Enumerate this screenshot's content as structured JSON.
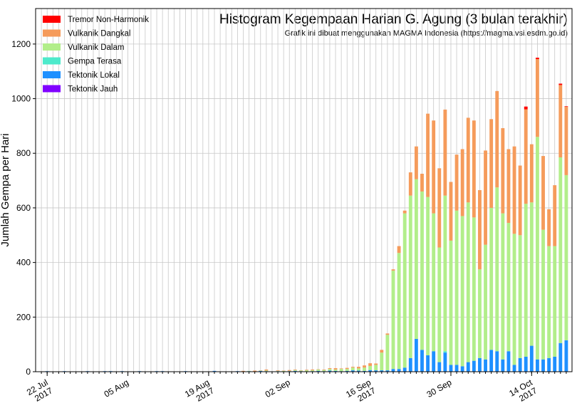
{
  "chart_data": {
    "type": "stacked_bar",
    "title": "Histogram Kegempaan Harian G. Agung (3 bulan terakhir)",
    "subtitle": "Grafik ini dibuat menggunakan MAGMA Indonesia (https://magma.vsi.esdm.go.id)",
    "y_label": "Jumlah Gempa per Hari",
    "x": [
      "2017-07-21",
      "2017-07-22",
      "2017-07-23",
      "2017-07-24",
      "2017-07-25",
      "2017-07-26",
      "2017-07-27",
      "2017-07-28",
      "2017-07-29",
      "2017-07-30",
      "2017-07-31",
      "2017-08-01",
      "2017-08-02",
      "2017-08-03",
      "2017-08-04",
      "2017-08-05",
      "2017-08-06",
      "2017-08-07",
      "2017-08-08",
      "2017-08-09",
      "2017-08-10",
      "2017-08-11",
      "2017-08-12",
      "2017-08-13",
      "2017-08-14",
      "2017-08-15",
      "2017-08-16",
      "2017-08-17",
      "2017-08-18",
      "2017-08-19",
      "2017-08-20",
      "2017-08-21",
      "2017-08-22",
      "2017-08-23",
      "2017-08-24",
      "2017-08-25",
      "2017-08-26",
      "2017-08-27",
      "2017-08-28",
      "2017-08-29",
      "2017-08-30",
      "2017-08-31",
      "2017-09-01",
      "2017-09-02",
      "2017-09-03",
      "2017-09-04",
      "2017-09-05",
      "2017-09-06",
      "2017-09-07",
      "2017-09-08",
      "2017-09-09",
      "2017-09-10",
      "2017-09-11",
      "2017-09-12",
      "2017-09-13",
      "2017-09-14",
      "2017-09-15",
      "2017-09-16",
      "2017-09-17",
      "2017-09-18",
      "2017-09-19",
      "2017-09-20",
      "2017-09-21",
      "2017-09-22",
      "2017-09-23",
      "2017-09-24",
      "2017-09-25",
      "2017-09-26",
      "2017-09-27",
      "2017-09-28",
      "2017-09-29",
      "2017-09-30",
      "2017-10-01",
      "2017-10-02",
      "2017-10-03",
      "2017-10-04",
      "2017-10-05",
      "2017-10-06",
      "2017-10-07",
      "2017-10-08",
      "2017-10-09",
      "2017-10-10",
      "2017-10-11",
      "2017-10-12",
      "2017-10-13",
      "2017-10-14",
      "2017-10-15",
      "2017-10-16",
      "2017-10-17",
      "2017-10-18",
      "2017-10-19",
      "2017-10-20"
    ],
    "series": [
      {
        "name": "Tremor Non-Harmonik",
        "color": "#ff0000",
        "values": [
          0,
          0,
          0,
          0,
          0,
          0,
          0,
          0,
          0,
          0,
          0,
          0,
          0,
          0,
          0,
          0,
          0,
          0,
          0,
          0,
          0,
          0,
          0,
          0,
          0,
          0,
          0,
          0,
          0,
          0,
          0,
          0,
          0,
          0,
          0,
          0,
          0,
          0,
          0,
          0,
          0,
          0,
          0,
          0,
          0,
          0,
          0,
          0,
          0,
          0,
          0,
          0,
          0,
          0,
          0,
          0,
          0,
          0,
          0,
          0,
          0,
          0,
          0,
          0,
          0,
          0,
          0,
          0,
          0,
          0,
          0,
          0,
          0,
          0,
          0,
          0,
          0,
          0,
          0,
          0,
          0,
          0,
          0,
          0,
          10,
          0,
          5,
          0,
          0,
          0,
          5,
          2
        ]
      },
      {
        "name": "Vulkanik Dangkal",
        "color": "#f59b5b",
        "values": [
          0,
          0,
          0,
          0,
          0,
          0,
          0,
          0,
          0,
          0,
          0,
          0,
          0,
          0,
          0,
          0,
          0,
          0,
          0,
          0,
          0,
          0,
          0,
          0,
          0,
          0,
          0,
          0,
          0,
          0,
          0,
          0,
          0,
          0,
          0,
          2,
          0,
          3,
          1,
          4,
          0,
          2,
          1,
          3,
          2,
          1,
          2,
          3,
          1,
          2,
          3,
          5,
          2,
          4,
          3,
          6,
          8,
          10,
          5,
          10,
          5,
          5,
          25,
          10,
          85,
          120,
          65,
          305,
          340,
          290,
          315,
          215,
          205,
          245,
          310,
          355,
          290,
          345,
          325,
          353,
          312,
          270,
          320,
          255,
          346,
          213,
          285,
          270,
          135,
          223,
          265,
          250
        ]
      },
      {
        "name": "Vulkanik Dalam",
        "color": "#b2ee8a",
        "values": [
          0,
          0,
          0,
          0,
          0,
          0,
          0,
          0,
          0,
          0,
          0,
          0,
          0,
          0,
          0,
          0,
          0,
          0,
          0,
          0,
          0,
          0,
          0,
          0,
          0,
          0,
          0,
          0,
          0,
          0,
          0,
          0,
          0,
          0,
          0,
          0,
          1,
          0,
          1,
          2,
          0,
          1,
          2,
          1,
          3,
          2,
          4,
          3,
          5,
          4,
          6,
          5,
          8,
          7,
          10,
          8,
          12,
          15,
          20,
          65,
          130,
          360,
          425,
          565,
          595,
          585,
          580,
          580,
          505,
          420,
          570,
          455,
          565,
          550,
          585,
          525,
          325,
          420,
          520,
          600,
          535,
          470,
          480,
          450,
          560,
          525,
          815,
          475,
          410,
          405,
          680,
          605
        ]
      },
      {
        "name": "Gempa Terasa",
        "color": "#4deacb",
        "values": [
          0,
          0,
          0,
          0,
          0,
          0,
          0,
          0,
          0,
          0,
          0,
          0,
          0,
          0,
          0,
          0,
          0,
          0,
          0,
          0,
          0,
          0,
          0,
          0,
          0,
          0,
          0,
          0,
          0,
          0,
          0,
          0,
          0,
          0,
          0,
          0,
          0,
          0,
          0,
          0,
          0,
          0,
          0,
          0,
          0,
          0,
          0,
          0,
          0,
          0,
          0,
          0,
          0,
          0,
          0,
          0,
          0,
          0,
          0,
          0,
          0,
          0,
          0,
          0,
          0,
          0,
          0,
          0,
          0,
          0,
          5,
          0,
          0,
          0,
          0,
          0,
          0,
          0,
          0,
          0,
          0,
          0,
          0,
          0,
          0,
          0,
          0,
          0,
          0,
          0,
          0,
          0
        ]
      },
      {
        "name": "Tektonik Lokal",
        "color": "#1e90ff",
        "values": [
          1,
          2,
          1,
          0,
          2,
          1,
          0,
          1,
          2,
          1,
          0,
          1,
          2,
          1,
          1,
          0,
          1,
          2,
          0,
          1,
          1,
          2,
          1,
          0,
          1,
          2,
          1,
          0,
          1,
          1,
          2,
          1,
          0,
          1,
          2,
          1,
          2,
          1,
          3,
          2,
          1,
          2,
          1,
          2,
          3,
          2,
          1,
          2,
          3,
          2,
          4,
          3,
          2,
          3,
          5,
          4,
          3,
          6,
          5,
          5,
          5,
          10,
          10,
          15,
          50,
          120,
          80,
          60,
          75,
          35,
          70,
          25,
          25,
          20,
          35,
          40,
          50,
          45,
          80,
          75,
          45,
          75,
          25,
          50,
          55,
          95,
          45,
          45,
          50,
          55,
          105,
          115
        ]
      },
      {
        "name": "Tektonik Jauh",
        "color": "#8000ff",
        "values": [
          0,
          0,
          0,
          1,
          0,
          0,
          0,
          0,
          0,
          0,
          0,
          1,
          0,
          0,
          1,
          0,
          0,
          0,
          0,
          0,
          1,
          0,
          0,
          1,
          0,
          0,
          0,
          0,
          0,
          0,
          1,
          0,
          0,
          0,
          0,
          0,
          0,
          0,
          0,
          0,
          0,
          0,
          0,
          0,
          0,
          0,
          0,
          0,
          0,
          0,
          0,
          0,
          0,
          0,
          0,
          0,
          0,
          0,
          0,
          0,
          0,
          0,
          0,
          0,
          0,
          0,
          0,
          0,
          0,
          0,
          0,
          0,
          0,
          0,
          0,
          0,
          0,
          0,
          0,
          0,
          0,
          0,
          0,
          0,
          0,
          0,
          0,
          0,
          0,
          0,
          0,
          0
        ]
      }
    ],
    "xlim": [
      "2017-07-20",
      "2017-10-21"
    ],
    "xticks": [
      {
        "value": "2017-07-22",
        "label": "22 Jul\n2017"
      },
      {
        "value": "2017-08-05",
        "label": "05 Aug"
      },
      {
        "value": "2017-08-19",
        "label": "19 Aug\n2017"
      },
      {
        "value": "2017-09-02",
        "label": "02 Sep"
      },
      {
        "value": "2017-09-16",
        "label": "16 Sep\n2017"
      },
      {
        "value": "2017-09-30",
        "label": "30 Sep"
      },
      {
        "value": "2017-10-14",
        "label": "14 Oct\n2017"
      }
    ],
    "ylim": [
      0,
      1330
    ],
    "yticks": [
      0,
      200,
      400,
      600,
      800,
      1000,
      1200
    ],
    "grid": true,
    "legend": "upper left"
  }
}
